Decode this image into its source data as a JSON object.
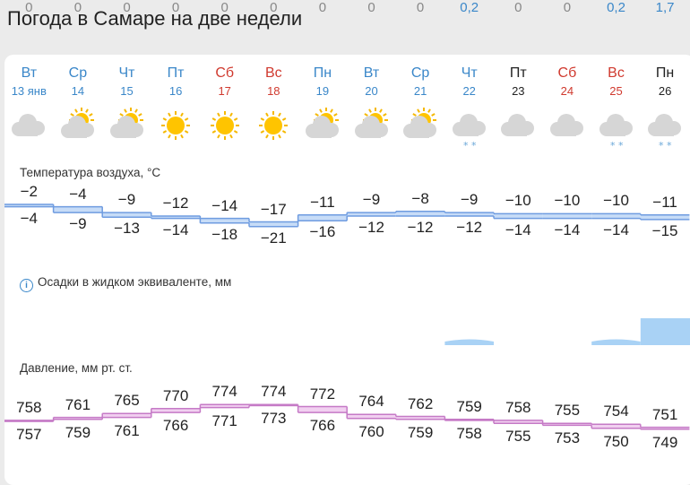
{
  "page_title": "Погода в Самаре на две недели",
  "days": [
    {
      "dow": "Вт",
      "date": "13 янв",
      "color": "blue",
      "icon": "cloudy",
      "snow": false
    },
    {
      "dow": "Ср",
      "date": "14",
      "color": "blue",
      "icon": "partly-sunny",
      "snow": false
    },
    {
      "dow": "Чт",
      "date": "15",
      "color": "blue",
      "icon": "partly-sunny",
      "snow": false
    },
    {
      "dow": "Пт",
      "date": "16",
      "color": "blue",
      "icon": "sunny",
      "snow": false
    },
    {
      "dow": "Сб",
      "date": "17",
      "color": "red",
      "icon": "sunny",
      "snow": false
    },
    {
      "dow": "Вс",
      "date": "18",
      "color": "red",
      "icon": "sunny",
      "snow": false
    },
    {
      "dow": "Пн",
      "date": "19",
      "color": "blue",
      "icon": "partly-sunny",
      "snow": false
    },
    {
      "dow": "Вт",
      "date": "20",
      "color": "blue",
      "icon": "partly-sunny",
      "snow": false
    },
    {
      "dow": "Ср",
      "date": "21",
      "color": "blue",
      "icon": "partly-sunny",
      "snow": false
    },
    {
      "dow": "Чт",
      "date": "22",
      "color": "blue",
      "icon": "cloudy",
      "snow": true
    },
    {
      "dow": "Пт",
      "date": "23",
      "color": "black",
      "icon": "cloudy",
      "snow": false
    },
    {
      "dow": "Сб",
      "date": "24",
      "color": "red",
      "icon": "cloudy",
      "snow": false
    },
    {
      "dow": "Вс",
      "date": "25",
      "color": "red",
      "icon": "cloudy",
      "snow": true
    },
    {
      "dow": "Пн",
      "date": "26",
      "color": "black",
      "icon": "cloudy",
      "snow": true
    }
  ],
  "temperature": {
    "label": "Температура воздуха, °C",
    "max": [
      "−2",
      "−4",
      "−9",
      "−12",
      "−14",
      "−17",
      "−11",
      "−9",
      "−8",
      "−9",
      "−10",
      "−10",
      "−10",
      "−11"
    ],
    "min": [
      "−4",
      "−9",
      "−13",
      "−14",
      "−18",
      "−21",
      "−16",
      "−12",
      "−12",
      "−12",
      "−14",
      "−14",
      "−14",
      "−15"
    ],
    "max_values": [
      -2,
      -4,
      -9,
      -12,
      -14,
      -17,
      -11,
      -9,
      -8,
      -9,
      -10,
      -10,
      -10,
      -11
    ],
    "min_values": [
      -4,
      -9,
      -13,
      -14,
      -18,
      -21,
      -16,
      -12,
      -12,
      -12,
      -14,
      -14,
      -14,
      -15
    ]
  },
  "precipitation": {
    "label": "Осадки в жидком эквиваленте, мм",
    "values": [
      "0",
      "0",
      "0",
      "0",
      "0",
      "0",
      "0",
      "0",
      "0",
      "0,2",
      "0",
      "0",
      "0,2",
      "1,7"
    ],
    "amounts": [
      0,
      0,
      0,
      0,
      0,
      0,
      0,
      0,
      0,
      0.2,
      0,
      0,
      0.2,
      1.7
    ]
  },
  "pressure": {
    "label": "Давление, мм рт. ст.",
    "max": [
      "758",
      "761",
      "765",
      "770",
      "774",
      "774",
      "772",
      "764",
      "762",
      "759",
      "758",
      "755",
      "754",
      "751"
    ],
    "min": [
      "757",
      "759",
      "761",
      "766",
      "771",
      "773",
      "766",
      "760",
      "759",
      "758",
      "755",
      "753",
      "750",
      "749"
    ],
    "max_values": [
      758,
      761,
      765,
      770,
      774,
      774,
      772,
      764,
      762,
      759,
      758,
      755,
      754,
      751
    ],
    "min_values": [
      757,
      759,
      761,
      766,
      771,
      773,
      766,
      760,
      759,
      758,
      755,
      753,
      750,
      749
    ]
  },
  "colors": {
    "weekday": "#3a87c9",
    "weekend": "#d03a2f",
    "temp_band": "#c7dcf7",
    "temp_line": "#6f9ce0",
    "precip": "#a9d2f5",
    "pressure_band": "#f1d0f0",
    "pressure_line": "#c57ac6"
  }
}
